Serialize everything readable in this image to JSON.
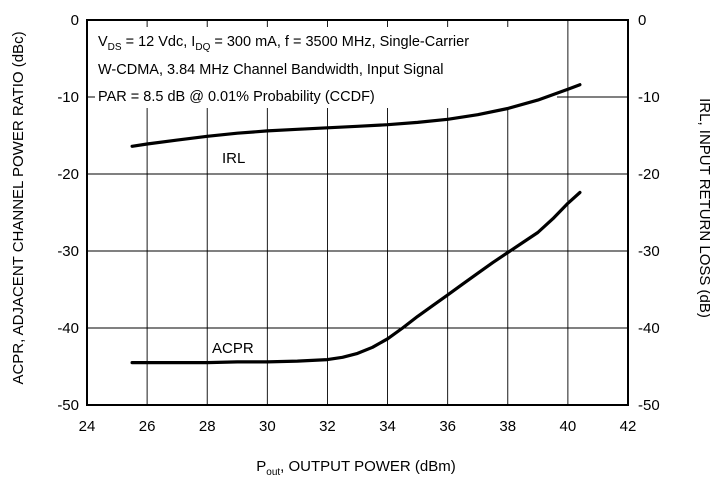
{
  "chart_data": {
    "type": "line",
    "xlabel": {
      "main": "P",
      "sub": "out",
      "rest": ", OUTPUT POWER (dBm)"
    },
    "ylabel_left": "ACPR, ADJACENT CHANNEL POWER RATIO (dBc)",
    "ylabel_right": "IRL, INPUT RETURN LOSS (dB)",
    "xlim": [
      24,
      42
    ],
    "ylim": [
      -50,
      0
    ],
    "x_ticks": [
      "24",
      "26",
      "28",
      "30",
      "32",
      "34",
      "36",
      "38",
      "40",
      "42"
    ],
    "y_ticks_left": [
      "0",
      "-10",
      "-20",
      "-30",
      "-40",
      "-50"
    ],
    "y_ticks_right": [
      "0",
      "-10",
      "-20",
      "-30",
      "-40",
      "-50"
    ],
    "grid": true,
    "annotation": {
      "line1": [
        {
          "t": "V",
          "s": "normal"
        },
        {
          "t": "DS",
          "s": "sub"
        },
        {
          "t": " = 12 Vdc, I",
          "s": "normal"
        },
        {
          "t": "DQ",
          "s": "sub"
        },
        {
          "t": " = 300 mA, f = 3500 MHz, Single-Carrier",
          "s": "normal"
        }
      ],
      "line2": "W-CDMA, 3.84 MHz Channel Bandwidth, Input Signal",
      "line3": "PAR = 8.5 dB @ 0.01% Probability (CCDF)"
    },
    "series": [
      {
        "name": "IRL",
        "x": [
          25.5,
          26,
          27,
          28,
          29,
          30,
          31,
          32,
          33,
          34,
          35,
          36,
          37,
          38,
          39,
          40,
          40.4
        ],
        "y": [
          -16.4,
          -16.1,
          -15.6,
          -15.1,
          -14.7,
          -14.4,
          -14.2,
          -14.0,
          -13.8,
          -13.6,
          -13.3,
          -12.9,
          -12.3,
          -11.5,
          -10.4,
          -9.0,
          -8.4
        ]
      },
      {
        "name": "ACPR",
        "x": [
          25.5,
          26,
          27,
          28,
          29,
          30,
          31,
          32,
          32.5,
          33,
          33.5,
          34,
          34.5,
          35,
          35.5,
          36,
          36.5,
          37,
          37.5,
          38,
          38.5,
          39,
          39.5,
          40,
          40.4
        ],
        "y": [
          -44.5,
          -44.5,
          -44.5,
          -44.5,
          -44.4,
          -44.4,
          -44.3,
          -44.1,
          -43.8,
          -43.3,
          -42.5,
          -41.4,
          -40.0,
          -38.5,
          -37.1,
          -35.7,
          -34.3,
          -32.9,
          -31.5,
          -30.2,
          -28.9,
          -27.6,
          -25.8,
          -23.8,
          -22.4
        ]
      }
    ],
    "series_labels": [
      "IRL",
      "ACPR"
    ]
  }
}
